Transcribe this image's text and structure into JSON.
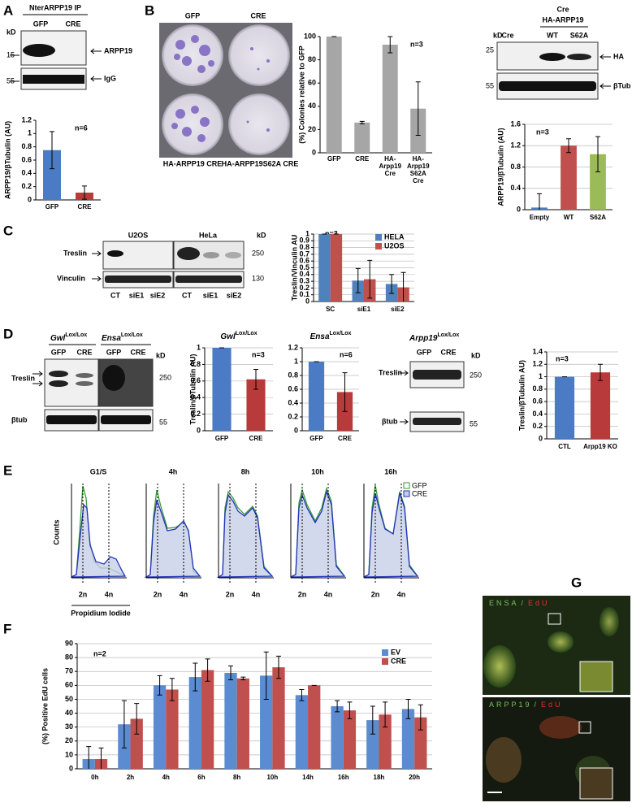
{
  "figure": {
    "panel_labels": [
      "A",
      "B",
      "C",
      "D",
      "E",
      "F",
      "G"
    ],
    "kd": "kD",
    "a": {
      "title": "NterARPP19 IP",
      "lanes": [
        "GFP",
        "CRE"
      ],
      "markers": [
        "15",
        "55"
      ],
      "bands": [
        "ARPP19",
        "IgG"
      ]
    },
    "b": {
      "plate_columns": [
        "GFP",
        "CRE"
      ],
      "plate_captions": [
        "HA-ARPP19 CRE",
        "HA-ARPP19S62A CRE"
      ],
      "blot_header": [
        "Cre",
        "HA-ARPP19"
      ],
      "lanes": [
        "Cre",
        "WT",
        "S62A"
      ],
      "markers": [
        "25",
        "55"
      ],
      "bands": [
        "HA",
        "βTub"
      ]
    },
    "c": {
      "cells": [
        "U2OS",
        "HeLa"
      ],
      "lanes": [
        "CT",
        "siE1",
        "siE2"
      ],
      "markers": [
        "250",
        "130"
      ],
      "bands": [
        "Treslin",
        "Vinculin"
      ]
    },
    "d": {
      "blots": [
        [
          "Gwl",
          "Lox/Lox"
        ],
        [
          "Ensa",
          "Lox/Lox"
        ],
        [
          "Arpp19",
          "Lox/Lox"
        ]
      ],
      "lanes": [
        "GFP",
        "CRE"
      ],
      "markers": [
        "250",
        "55"
      ],
      "bands": [
        "Treslin",
        "βtub"
      ]
    },
    "e": {
      "times": [
        "G1/S",
        "4h",
        "8h",
        "10h",
        "16h"
      ],
      "ploidy": [
        "2n",
        "4n"
      ],
      "y_label": "Counts",
      "x_label": "Propidium Iodide",
      "legend": [
        "GFP",
        "CRE"
      ],
      "legend_colors": [
        "#3a9a3a",
        "#2233bb"
      ]
    },
    "g": {
      "stains": [
        [
          "ENSA",
          "EdU"
        ],
        [
          "ARPP19",
          "EdU"
        ]
      ],
      "sep": "/"
    }
  },
  "chart_data": [
    {
      "type": "bar",
      "y_label": "ARPP19/βTubulin (AU)",
      "annotation": "n=6",
      "categories": [
        "GFP",
        "CRE"
      ],
      "values": [
        0.75,
        0.11
      ],
      "errors": [
        0.28,
        0.1
      ],
      "colors": [
        "#4a7bc4",
        "#b83a3a"
      ],
      "ylim": [
        0,
        1.2
      ],
      "yticks": [
        0,
        0.2,
        0.4,
        0.6,
        0.8,
        1,
        1.2
      ],
      "grid": false
    },
    {
      "type": "bar",
      "y_label": "(%) Colonies relative to GFP",
      "annotation": "n=3",
      "categories": [
        "GFP",
        "CRE",
        "HA-Arpp19 Cre",
        "HA-Arpp19 S62A Cre"
      ],
      "values": [
        100,
        26,
        93,
        38
      ],
      "errors": [
        0,
        1,
        7,
        23
      ],
      "color": "#a6a6a6",
      "ylim": [
        0,
        100
      ],
      "yticks": [
        0,
        20,
        40,
        60,
        80,
        100
      ],
      "grid": false
    },
    {
      "type": "bar",
      "y_label": "ARPP19/βTubulin (AU)",
      "annotation": "n=3",
      "categories": [
        "Empty",
        "WT",
        "S62A"
      ],
      "values": [
        0.04,
        1.2,
        1.04
      ],
      "errors": [
        0.26,
        0.13,
        0.33
      ],
      "colors": [
        "#4a7bc4",
        "#c0504d",
        "#9bbb59"
      ],
      "ylim": [
        0,
        1.6
      ],
      "yticks": [
        0,
        0.4,
        0.8,
        1.2,
        1.6
      ],
      "grid": true
    },
    {
      "type": "bar",
      "y_label": "Treslin/Vinculin AU",
      "annotation": "n=3",
      "categories": [
        "SC",
        "siE1",
        "siE2"
      ],
      "series": [
        {
          "name": "HELA",
          "color": "#4f81bd",
          "values": [
            1,
            0.31,
            0.26
          ],
          "errors": [
            0,
            0.18,
            0.14
          ]
        },
        {
          "name": "U2OS",
          "color": "#c0504d",
          "values": [
            1,
            0.33,
            0.21
          ],
          "errors": [
            0,
            0.28,
            0.22
          ]
        }
      ],
      "ylim": [
        0,
        1
      ],
      "yticks": [
        0,
        0.1,
        0.2,
        0.3,
        0.4,
        0.5,
        0.6,
        0.7,
        0.8,
        0.9,
        1
      ],
      "grid": true
    },
    {
      "type": "bar",
      "title": "Gwl",
      "title_sup": "Lox/Lox",
      "y_label": "Treslin/βTubulin AU)",
      "annotation": "n=3",
      "categories": [
        "GFP",
        "CRE"
      ],
      "values": [
        1,
        0.62
      ],
      "errors": [
        0,
        0.12
      ],
      "colors": [
        "#4a7bc4",
        "#b83a3a"
      ],
      "ylim": [
        0,
        1
      ],
      "yticks": [
        0,
        0.2,
        0.4,
        0.6,
        0.8,
        1
      ],
      "grid": true
    },
    {
      "type": "bar",
      "title": "Ensa",
      "title_sup": "Lox/Lox",
      "annotation": "n=6",
      "categories": [
        "GFP",
        "CRE"
      ],
      "values": [
        1,
        0.56
      ],
      "errors": [
        0,
        0.28
      ],
      "colors": [
        "#4a7bc4",
        "#b83a3a"
      ],
      "ylim": [
        0,
        1.2
      ],
      "yticks": [
        0,
        0.2,
        0.4,
        0.6,
        0.8,
        1,
        1.2
      ],
      "grid": true
    },
    {
      "type": "bar",
      "y_label": "Treslin/βTubulin AU)",
      "annotation": "n=3",
      "categories": [
        "CTL",
        "Arpp19 KO"
      ],
      "values": [
        1,
        1.07
      ],
      "errors": [
        0,
        0.13
      ],
      "colors": [
        "#4a7bc4",
        "#b83a3a"
      ],
      "ylim": [
        0,
        1.4
      ],
      "yticks": [
        0,
        0.2,
        0.4,
        0.6,
        0.8,
        1,
        1.2,
        1.4
      ],
      "grid": true
    },
    {
      "type": "bar",
      "y_label": "(%) Positive EdU cells",
      "annotation": "n=2",
      "categories": [
        "0h",
        "2h",
        "4h",
        "6h",
        "8h",
        "10h",
        "14h",
        "16h",
        "18h",
        "20h"
      ],
      "series": [
        {
          "name": "EV",
          "color": "#5b8bd0",
          "values": [
            7,
            32,
            60,
            66,
            69,
            67,
            53,
            45,
            35,
            43
          ],
          "errors": [
            9,
            17,
            7,
            10,
            5,
            17,
            4,
            4,
            10,
            7
          ]
        },
        {
          "name": "CRE",
          "color": "#c0504d",
          "values": [
            7,
            36,
            57,
            71,
            65,
            73,
            60,
            42,
            39,
            37
          ],
          "errors": [
            8,
            11,
            8,
            8,
            1,
            8,
            0,
            6,
            9,
            9
          ]
        }
      ],
      "ylim": [
        0,
        90
      ],
      "yticks": [
        0,
        10,
        20,
        30,
        40,
        50,
        60,
        70,
        80,
        90
      ],
      "grid": true
    }
  ]
}
